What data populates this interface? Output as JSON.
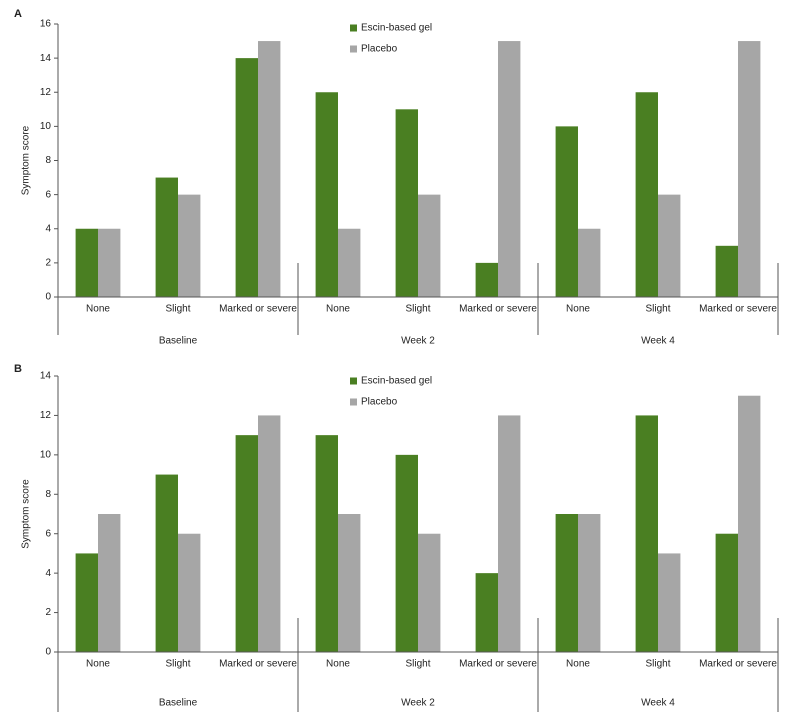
{
  "chart_data": [
    {
      "type": "bar",
      "panel": "A",
      "ylabel": "Symptom score",
      "categories": [
        "None",
        "Slight",
        "Marked or severe",
        "None",
        "Slight",
        "Marked or severe",
        "None",
        "Slight",
        "Marked or severe"
      ],
      "groups": [
        "Baseline",
        "Week 2",
        "Week 4"
      ],
      "series": [
        {
          "name": "Escin-based gel",
          "color": "#4a7f22",
          "values": [
            4,
            7,
            14,
            12,
            11,
            2,
            10,
            12,
            3
          ]
        },
        {
          "name": "Placebo",
          "color": "#a6a6a6",
          "values": [
            4,
            6,
            15,
            4,
            6,
            15,
            4,
            6,
            15
          ]
        }
      ],
      "ylim": [
        0,
        16
      ],
      "yticks": [
        0,
        2,
        4,
        6,
        8,
        10,
        12,
        14,
        16
      ]
    },
    {
      "type": "bar",
      "panel": "B",
      "ylabel": "Symptom score",
      "categories": [
        "None",
        "Slight",
        "Marked or severe",
        "None",
        "Slight",
        "Marked or severe",
        "None",
        "Slight",
        "Marked or severe"
      ],
      "groups": [
        "Baseline",
        "Week 2",
        "Week 4"
      ],
      "series": [
        {
          "name": "Escin-based gel",
          "color": "#4a7f22",
          "values": [
            5,
            9,
            11,
            11,
            10,
            4,
            7,
            12,
            6
          ]
        },
        {
          "name": "Placebo",
          "color": "#a6a6a6",
          "values": [
            7,
            6,
            12,
            7,
            6,
            12,
            7,
            5,
            13
          ]
        }
      ],
      "ylim": [
        0,
        14
      ],
      "yticks": [
        0,
        2,
        4,
        6,
        8,
        10,
        12,
        14
      ]
    }
  ]
}
